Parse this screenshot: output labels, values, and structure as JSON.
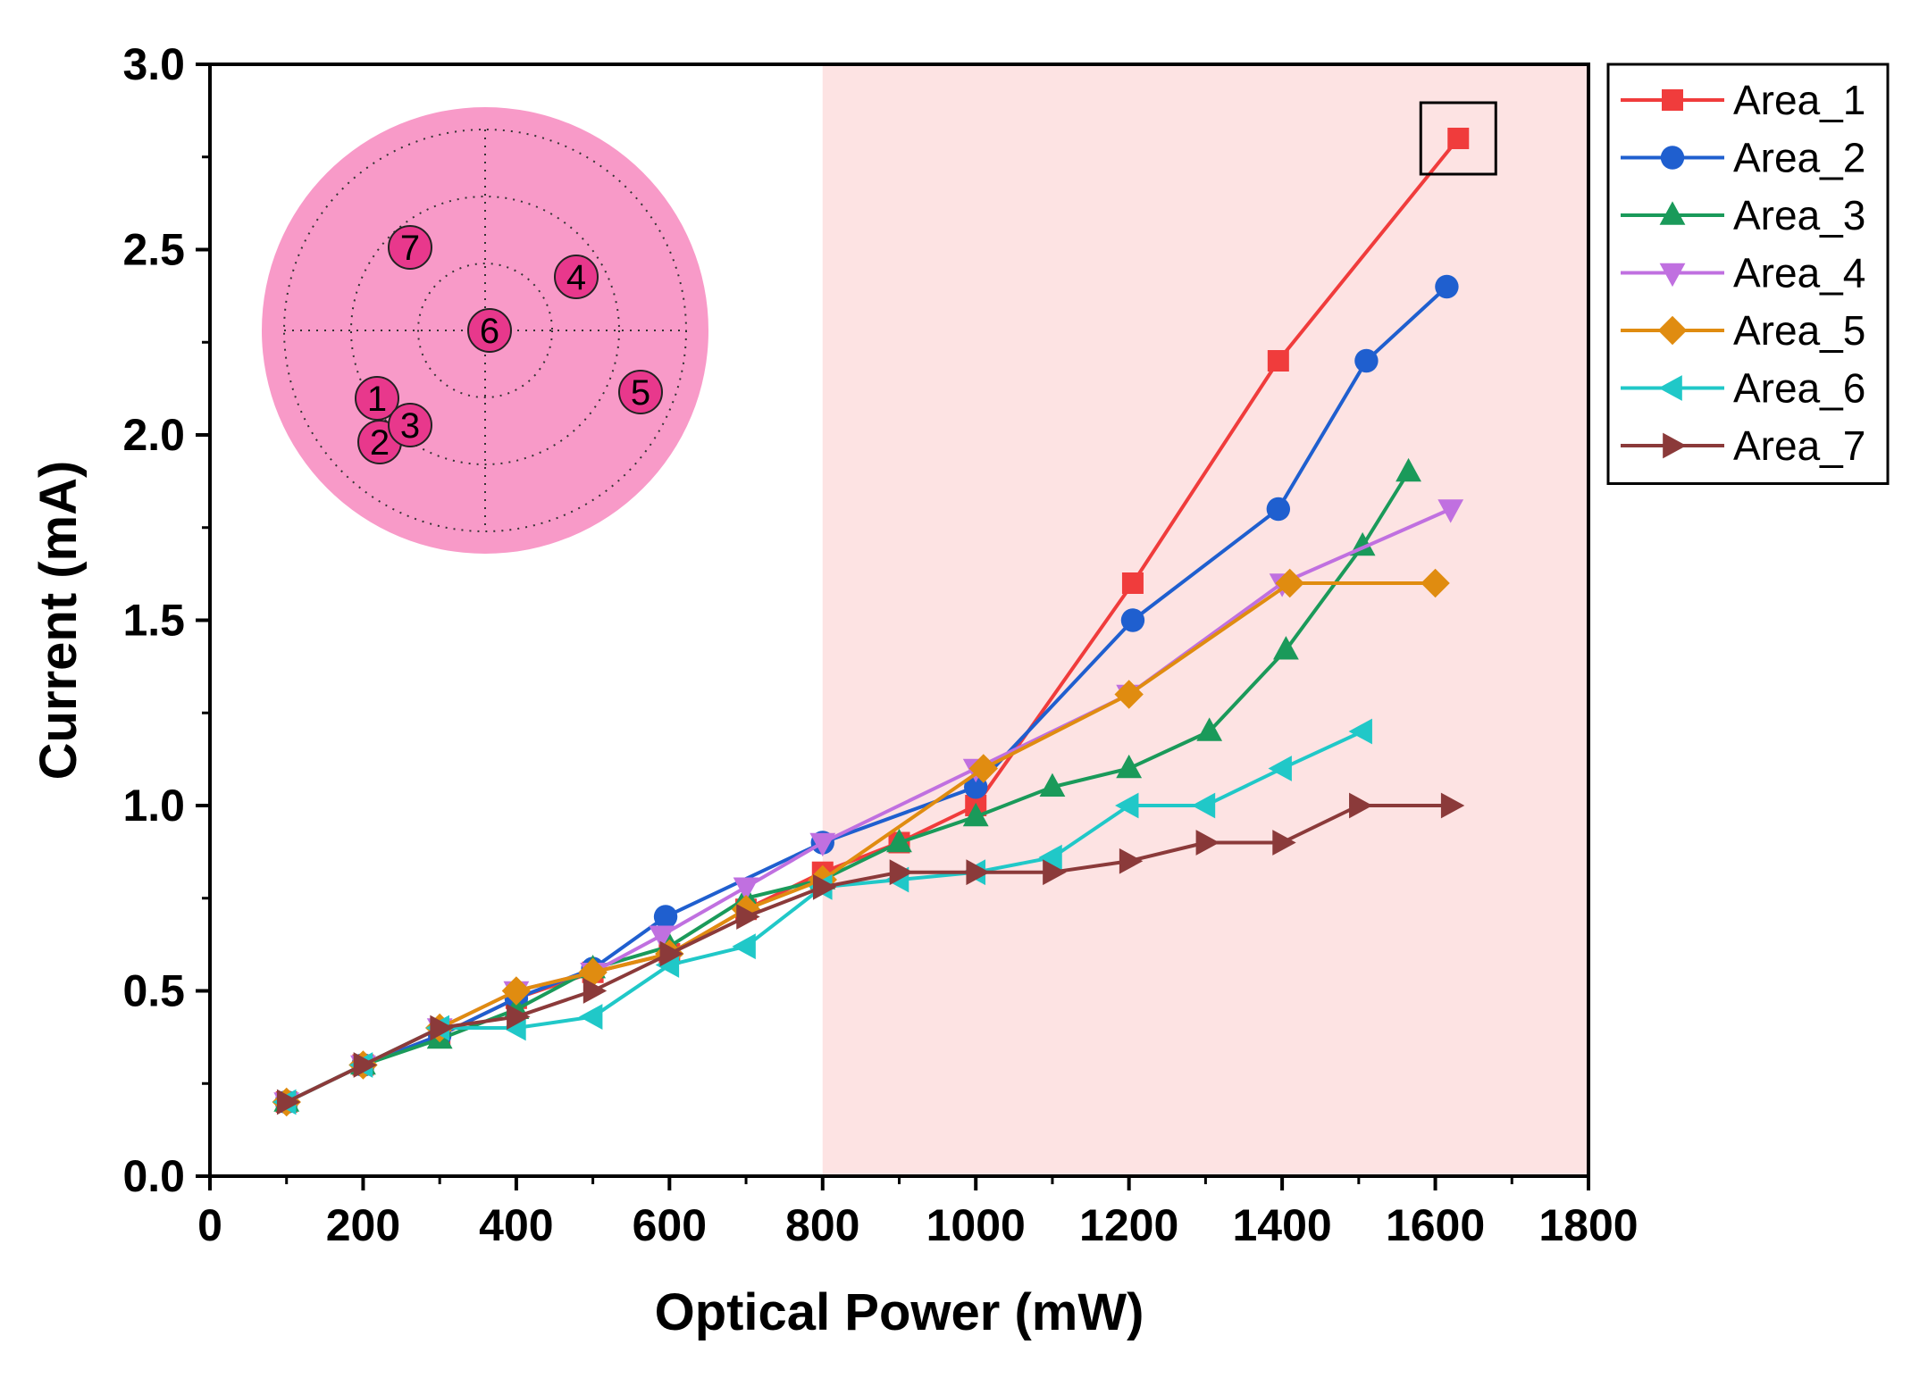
{
  "chart_data": {
    "type": "line",
    "title": "",
    "xlabel": "Optical Power (mW)",
    "ylabel": "Current (mA)",
    "xlim": [
      0,
      1800
    ],
    "ylim": [
      0,
      3.0
    ],
    "xticks": [
      0,
      200,
      400,
      600,
      800,
      1000,
      1200,
      1400,
      1600,
      1800
    ],
    "yticks": [
      0.0,
      0.5,
      1.0,
      1.5,
      2.0,
      2.5,
      3.0
    ],
    "xtick_labels": [
      "0",
      "200",
      "400",
      "600",
      "800",
      "1000",
      "1200",
      "1400",
      "1600",
      "1800"
    ],
    "ytick_labels": [
      "0.0",
      "0.5",
      "1.0",
      "1.5",
      "2.0",
      "2.5",
      "3.0"
    ],
    "legend_position": "outside-right-top",
    "shaded_region": {
      "x_from": 800,
      "x_to": 1800,
      "color": "#fde3e3"
    },
    "highlight_point": {
      "series": "Area_1",
      "x": 1630,
      "y": 2.8
    },
    "series": [
      {
        "name": "Area_1",
        "color": "#f03c3c",
        "marker": "square",
        "x": [
          100,
          200,
          300,
          400,
          500,
          600,
          700,
          800,
          900,
          1000,
          1205,
          1395,
          1630
        ],
        "y": [
          0.2,
          0.3,
          0.38,
          0.48,
          0.55,
          0.6,
          0.72,
          0.82,
          0.9,
          1.0,
          1.6,
          2.2,
          2.8
        ]
      },
      {
        "name": "Area_2",
        "color": "#1f5fcf",
        "marker": "circle",
        "x": [
          100,
          200,
          300,
          400,
          500,
          595,
          800,
          1000,
          1205,
          1395,
          1510,
          1615
        ],
        "y": [
          0.2,
          0.3,
          0.38,
          0.48,
          0.56,
          0.7,
          0.9,
          1.05,
          1.5,
          1.8,
          2.2,
          2.4
        ]
      },
      {
        "name": "Area_3",
        "color": "#1a9a5a",
        "marker": "triangle-up",
        "x": [
          100,
          200,
          300,
          400,
          500,
          600,
          700,
          800,
          900,
          1000,
          1100,
          1200,
          1305,
          1405,
          1505,
          1565
        ],
        "y": [
          0.2,
          0.3,
          0.37,
          0.45,
          0.56,
          0.62,
          0.75,
          0.8,
          0.9,
          0.97,
          1.05,
          1.1,
          1.2,
          1.42,
          1.7,
          1.9
        ]
      },
      {
        "name": "Area_4",
        "color": "#c070e0",
        "marker": "triangle-down",
        "x": [
          100,
          200,
          300,
          400,
          500,
          590,
          700,
          800,
          1000,
          1200,
          1400,
          1620
        ],
        "y": [
          0.2,
          0.3,
          0.4,
          0.5,
          0.55,
          0.65,
          0.78,
          0.9,
          1.1,
          1.3,
          1.6,
          1.8
        ]
      },
      {
        "name": "Area_5",
        "color": "#e08c10",
        "marker": "diamond",
        "x": [
          100,
          200,
          300,
          400,
          500,
          600,
          700,
          800,
          1010,
          1200,
          1410,
          1600
        ],
        "y": [
          0.2,
          0.3,
          0.4,
          0.5,
          0.55,
          0.6,
          0.72,
          0.8,
          1.1,
          1.3,
          1.6,
          1.6
        ]
      },
      {
        "name": "Area_6",
        "color": "#20c8c8",
        "marker": "triangle-left",
        "x": [
          100,
          200,
          300,
          400,
          500,
          600,
          700,
          800,
          900,
          1000,
          1100,
          1200,
          1300,
          1400,
          1505
        ],
        "y": [
          0.2,
          0.3,
          0.4,
          0.4,
          0.43,
          0.57,
          0.62,
          0.78,
          0.8,
          0.82,
          0.86,
          1.0,
          1.0,
          1.1,
          1.2
        ]
      },
      {
        "name": "Area_7",
        "color": "#8b3a3a",
        "marker": "triangle-right",
        "x": [
          100,
          200,
          300,
          400,
          500,
          600,
          700,
          800,
          900,
          1000,
          1100,
          1200,
          1300,
          1400,
          1500,
          1620
        ],
        "y": [
          0.2,
          0.3,
          0.4,
          0.43,
          0.5,
          0.6,
          0.7,
          0.78,
          0.82,
          0.82,
          0.82,
          0.85,
          0.9,
          0.9,
          1.0,
          1.0
        ]
      }
    ],
    "inset": {
      "description_labels": [
        "1",
        "2",
        "3",
        "4",
        "5",
        "6",
        "7"
      ],
      "disk_color": "#f89ac8",
      "spot_color": "#e8388c"
    }
  }
}
